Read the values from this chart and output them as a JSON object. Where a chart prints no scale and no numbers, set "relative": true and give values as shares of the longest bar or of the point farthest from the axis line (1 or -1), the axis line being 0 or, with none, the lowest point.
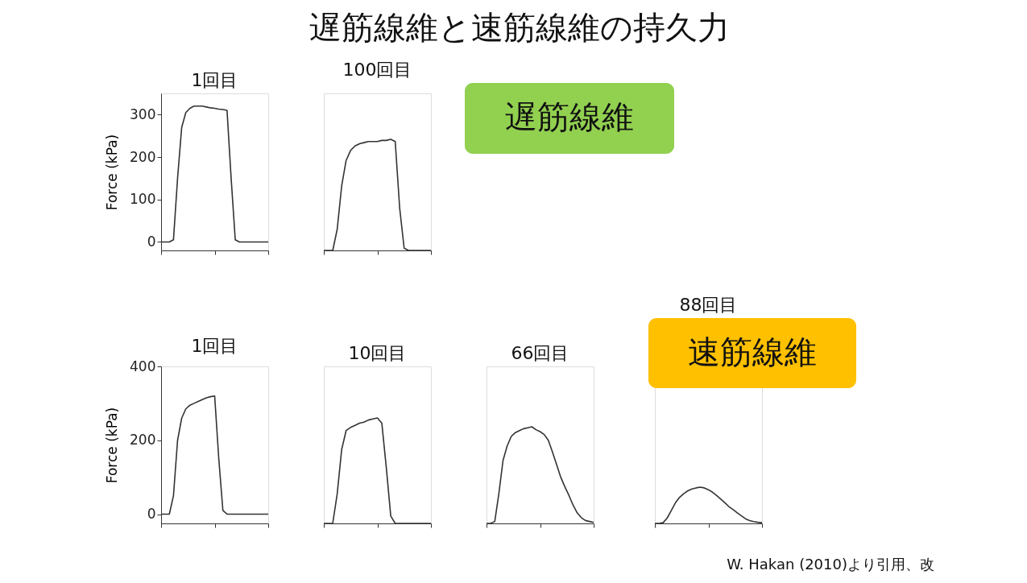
{
  "chart_data": [
    {
      "type": "line",
      "title": "1回目",
      "ylabel": "Force (kPa)",
      "categories": [
        null,
        null,
        null,
        null,
        null,
        null,
        null,
        null,
        null,
        null,
        null,
        null,
        null,
        null,
        null,
        null,
        null,
        null,
        null,
        null,
        null,
        null,
        null,
        null,
        null,
        null,
        null
      ],
      "values": [
        0,
        0,
        0,
        5,
        150,
        270,
        305,
        315,
        320,
        320,
        320,
        318,
        316,
        315,
        313,
        312,
        310,
        150,
        5,
        0,
        0,
        0,
        0,
        0,
        0,
        0,
        0
      ],
      "color": "#333333",
      "ylim": [
        -20,
        350
      ],
      "yticks": [
        0,
        100,
        200,
        300
      ],
      "tick_labels": "y",
      "annotations": [
        "遅筋線維と速筋線維の持久力"
      ]
    },
    {
      "type": "line",
      "title": "100回目",
      "relative": true,
      "categories": [
        null,
        null,
        null,
        null,
        null,
        null,
        null,
        null,
        null,
        null,
        null,
        null,
        null,
        null,
        null,
        null,
        null,
        null,
        null,
        null,
        null,
        null,
        null,
        null,
        null
      ],
      "values": [
        0,
        0,
        0,
        0.19,
        0.58,
        0.81,
        0.9,
        0.94,
        0.96,
        0.97,
        0.98,
        0.98,
        0.98,
        0.99,
        0.99,
        1,
        0.98,
        0.38,
        0.02,
        0,
        0,
        0,
        0,
        0,
        0
      ],
      "color": "#333333",
      "tick_labels": false,
      "annotations": [
        "遅筋線維"
      ]
    },
    {
      "type": "line",
      "title": "1回目",
      "ylabel": "Force (kPa)",
      "categories": [
        null,
        null,
        null,
        null,
        null,
        null,
        null,
        null,
        null,
        null,
        null,
        null,
        null,
        null,
        null,
        null,
        null,
        null,
        null,
        null,
        null,
        null,
        null,
        null,
        null,
        null,
        null
      ],
      "values": [
        0,
        0,
        0,
        50,
        200,
        260,
        285,
        295,
        300,
        305,
        310,
        315,
        318,
        320,
        150,
        10,
        0,
        0,
        0,
        0,
        0,
        0,
        0,
        0,
        0,
        0,
        0
      ],
      "color": "#333333",
      "ylim": [
        -25,
        400
      ],
      "yticks": [
        0,
        200,
        400
      ],
      "tick_labels": "y"
    },
    {
      "type": "line",
      "title": "10回目",
      "relative": true,
      "categories": [
        null,
        null,
        null,
        null,
        null,
        null,
        null,
        null,
        null,
        null,
        null,
        null,
        null,
        null,
        null,
        null,
        null,
        null,
        null,
        null,
        null,
        null,
        null,
        null,
        null
      ],
      "values": [
        0,
        0,
        0,
        0.28,
        0.7,
        0.88,
        0.91,
        0.93,
        0.95,
        0.96,
        0.98,
        0.99,
        1,
        0.95,
        0.53,
        0.07,
        0,
        0,
        0,
        0,
        0,
        0,
        0,
        0,
        0
      ],
      "color": "#333333",
      "tick_labels": false
    },
    {
      "type": "line",
      "title": "66回目",
      "relative": true,
      "categories": [
        null,
        null,
        null,
        null,
        null,
        null,
        null,
        null,
        null,
        null,
        null,
        null,
        null,
        null,
        null,
        null,
        null,
        null,
        null,
        null,
        null,
        null,
        null,
        null,
        null,
        null,
        null
      ],
      "values": [
        0,
        0,
        0.02,
        0.31,
        0.65,
        0.8,
        0.9,
        0.94,
        0.96,
        0.98,
        0.99,
        1,
        0.97,
        0.95,
        0.92,
        0.86,
        0.74,
        0.61,
        0.48,
        0.38,
        0.29,
        0.19,
        0.11,
        0.06,
        0.03,
        0.02,
        0.01
      ],
      "color": "#333333",
      "tick_labels": false
    },
    {
      "type": "line",
      "title": "88回目",
      "relative": true,
      "categories": [
        null,
        null,
        null,
        null,
        null,
        null,
        null,
        null,
        null,
        null,
        null,
        null,
        null,
        null,
        null,
        null,
        null,
        null,
        null,
        null,
        null,
        null,
        null,
        null,
        null,
        null,
        null
      ],
      "values": [
        0,
        0,
        0.02,
        0.15,
        0.36,
        0.57,
        0.72,
        0.82,
        0.9,
        0.95,
        0.98,
        1,
        0.98,
        0.93,
        0.86,
        0.77,
        0.67,
        0.57,
        0.46,
        0.38,
        0.29,
        0.21,
        0.13,
        0.08,
        0.05,
        0.03,
        0.02
      ],
      "color": "#333333",
      "tick_labels": false,
      "annotations": [
        "速筋線維",
        "W. Hakan (2010)より引用、改"
      ]
    }
  ]
}
